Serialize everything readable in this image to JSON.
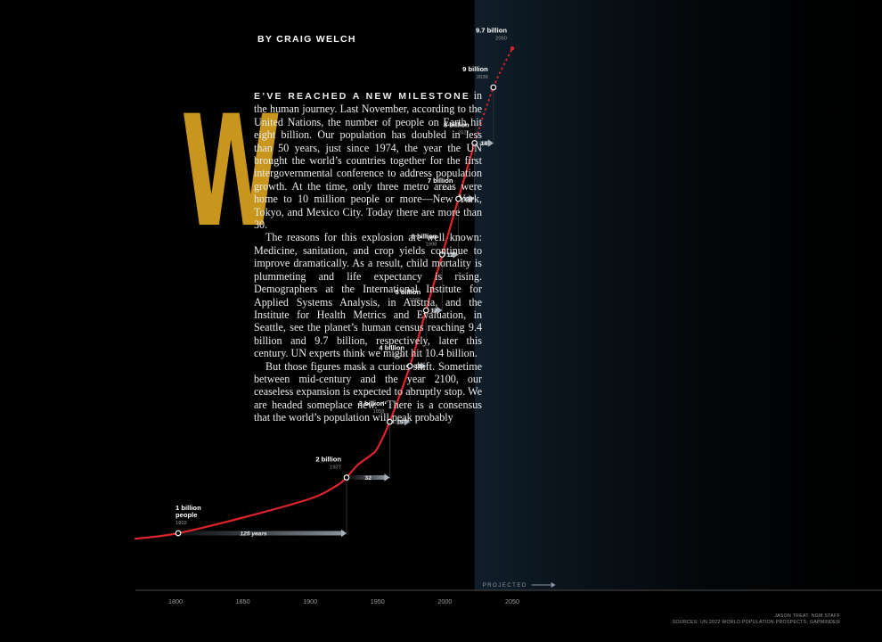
{
  "byline": "BY CRAIG WELCH",
  "article": {
    "drop_cap": "W",
    "lead_in": "E’VE REACHED A NEW MILESTONE",
    "p1": "in the human journey. Last November, according to the United Nations, the number of people on Earth hit eight billion. Our population has doubled in less than 50 years, just since 1974, the year the UN brought the world’s countries together for the first intergovernmental conference to address population growth. At the time, only three metro areas were home to 10 million people or more—New York, Tokyo, and Mexico City. Today there are more than 30.",
    "p2": "The reasons for this explosion are well known: Medicine, sanitation, and crop yields continue to improve dramatically. As a result, child mortality is plummeting and life expectancy is rising. Demographers at the International Institute for Applied Systems Analysis, in Austria, and the Institute for Health Metrics and Evaluation, in Seattle, see the planet’s human census reaching 9.4 billion and 9.7 billion, respectively, later this century. UN experts think we might hit 10.4 billion.",
    "p3": "But those figures mask a curious shift. Sometime between mid-century and the year 2100, our ceaseless expansion is expected to abruptly stop. We are headed someplace new. “There is a consensus that the world’s population will peak probably"
  },
  "chart_data": {
    "type": "line",
    "title": "",
    "xlabel": "",
    "ylabel": "",
    "xlim": [
      1785,
      2055
    ],
    "ylim": [
      0.3,
      10
    ],
    "x_ticks": [
      "1800",
      "1850",
      "1900",
      "1950",
      "2000",
      "2050"
    ],
    "projected_label": "PROJECTED",
    "projected_from": 2022,
    "colors": {
      "line": "#e0242b",
      "milestone_fill": "#000000",
      "arrow": "#b9c1c9",
      "projected_band": "#0d1a26"
    },
    "milestones": [
      {
        "label": "1 billion",
        "label2": "people",
        "year": 1802,
        "pop": 1
      },
      {
        "label": "2 billion",
        "year": 1927,
        "pop": 2
      },
      {
        "label": "3 billion",
        "year": 1959,
        "pop": 3
      },
      {
        "label": "4 billion",
        "year": 1974,
        "pop": 4
      },
      {
        "label": "5 billion",
        "year": 1986,
        "pop": 5
      },
      {
        "label": "6 billion",
        "year": 1998,
        "pop": 6
      },
      {
        "label": "7 billion",
        "year": 2010,
        "pop": 7
      },
      {
        "label": "8 billion",
        "year": 2022,
        "pop": 8
      },
      {
        "label": "9 billion",
        "year": 2036,
        "pop": 9
      },
      {
        "label": "9.7 billion",
        "year": 2050,
        "pop": 9.7
      }
    ],
    "intervals": [
      {
        "label": "125 years",
        "from": 1802,
        "to": 1927
      },
      {
        "label": "32",
        "from": 1927,
        "to": 1959
      },
      {
        "label": "15",
        "from": 1959,
        "to": 1974
      },
      {
        "label": "12",
        "from": 1974,
        "to": 1986
      },
      {
        "label": "12",
        "from": 1986,
        "to": 1998
      },
      {
        "label": "12",
        "from": 1998,
        "to": 2010
      },
      {
        "label": "12",
        "from": 2010,
        "to": 2022
      },
      {
        "label": "14",
        "from": 2022,
        "to": 2036
      }
    ],
    "curve": [
      [
        1785,
        0.9
      ],
      [
        1802,
        1.0
      ],
      [
        1850,
        1.28
      ],
      [
        1900,
        1.62
      ],
      [
        1920,
        1.86
      ],
      [
        1927,
        2.0
      ],
      [
        1935,
        2.22
      ],
      [
        1945,
        2.4
      ],
      [
        1950,
        2.53
      ],
      [
        1959,
        3.0
      ],
      [
        1974,
        4.0
      ],
      [
        1986,
        5.0
      ],
      [
        1998,
        6.0
      ],
      [
        2010,
        7.0
      ],
      [
        2022,
        8.0
      ]
    ],
    "curve_projected": [
      [
        2022,
        8.0
      ],
      [
        2036,
        9.0
      ],
      [
        2050,
        9.7
      ]
    ]
  },
  "credit": {
    "line1": "JASON TREAT, NGM STAFF",
    "line2": "SOURCES: UN 2022 WORLD POPULATION PROSPECTS; GAPMINDER"
  }
}
